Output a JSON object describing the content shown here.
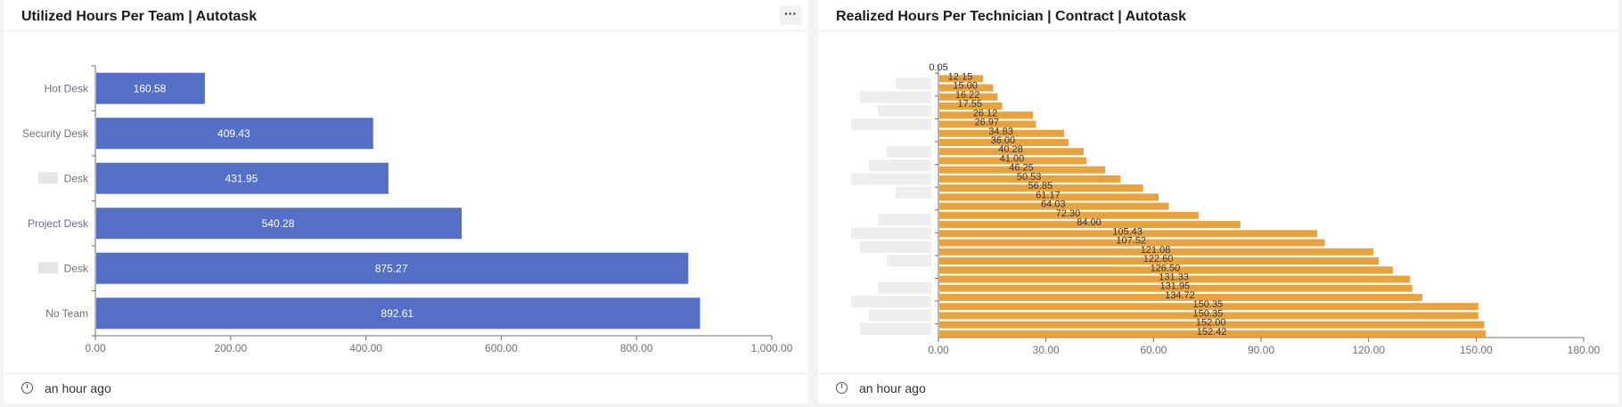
{
  "panels": [
    {
      "title": "Utilized Hours Per Team | Autotask",
      "more_label": "···",
      "updated": "an hour ago"
    },
    {
      "title": "Realized Hours Per Technician | Contract | Autotask",
      "updated": "an hour ago"
    }
  ],
  "chart_data": [
    {
      "type": "bar",
      "orientation": "horizontal",
      "title": "Utilized Hours Per Team | Autotask",
      "categories": [
        "Hot Desk",
        "Security Desk",
        "Desk",
        "Project Desk",
        "Desk",
        "No Team"
      ],
      "values": [
        160.58,
        409.43,
        431.95,
        540.28,
        875.27,
        892.61
      ],
      "value_labels": [
        "160.58",
        "409.43",
        "431.95",
        "540.28",
        "875.27",
        "892.61"
      ],
      "xlim": [
        0,
        1000
      ],
      "xticks": [
        "0.00",
        "200.00",
        "400.00",
        "600.00",
        "800.00",
        "1,000.00"
      ],
      "color": "#5470c6",
      "grid": false
    },
    {
      "type": "bar",
      "orientation": "horizontal",
      "title": "Realized Hours Per Technician | Contract | Autotask",
      "categories_blurred": true,
      "values": [
        0.05,
        12.15,
        15.0,
        16.22,
        17.55,
        26.12,
        26.97,
        34.83,
        36.0,
        40.28,
        41.0,
        46.25,
        50.53,
        56.85,
        61.17,
        64.03,
        72.3,
        84.0,
        105.43,
        107.52,
        121.08,
        122.6,
        126.5,
        131.33,
        131.95,
        134.72,
        150.35,
        150.35,
        152.0,
        152.42
      ],
      "value_labels": [
        "0.05",
        "12.15",
        "15.00",
        "16.22",
        "17.55",
        "26.12",
        "26.97",
        "34.83",
        "36.00",
        "40.28",
        "41.00",
        "46.25",
        "50.53",
        "56.85",
        "61.17",
        "64.03",
        "72.30",
        "84.00",
        "105.43",
        "107.52",
        "121.08",
        "122.60",
        "126.50",
        "131.33",
        "131.95",
        "134.72",
        "150.35",
        "150.35",
        "152.00",
        "152.42"
      ],
      "xlim": [
        0,
        180
      ],
      "xticks": [
        "0.00",
        "30.00",
        "60.00",
        "90.00",
        "120.00",
        "150.00",
        "180.00"
      ],
      "color": "#e8a33d",
      "grid": false
    }
  ]
}
